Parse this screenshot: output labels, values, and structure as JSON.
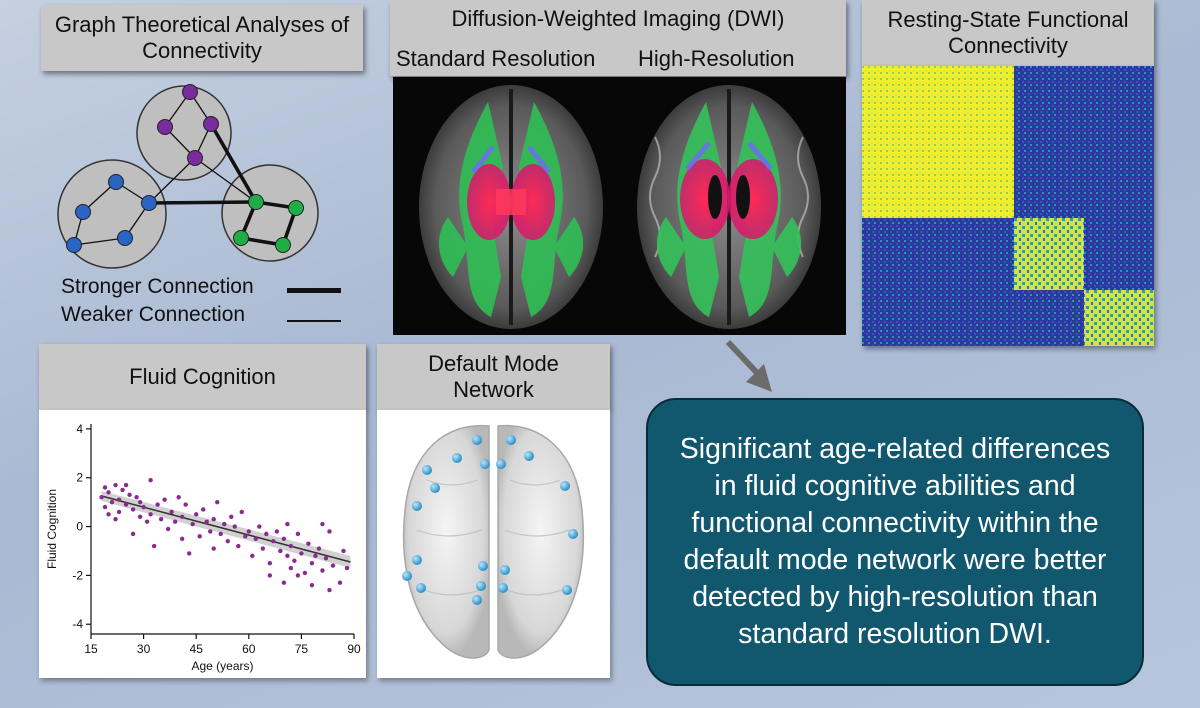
{
  "graph_panel": {
    "title": "Graph Theoretical Analyses of Connectivity",
    "legend_strong": "Stronger Connection",
    "legend_weak": "Weaker Connection",
    "colors": {
      "purple": "#7a2b9e",
      "blue": "#2a64c4",
      "green": "#1fae46"
    }
  },
  "dwi_panel": {
    "title": "Diffusion-Weighted Imaging (DWI)",
    "standard_label": "Standard Resolution",
    "high_label": "High-Resolution"
  },
  "rsfc_panel": {
    "title": "Resting-State Functional Connectivity"
  },
  "fluid_panel": {
    "title": "Fluid Cognition"
  },
  "dmn_panel": {
    "title": "Default Mode Network"
  },
  "callout": {
    "text": "Significant age-related differences in fluid cognitive abilities and functional connectivity within the default mode network were better detected by high-resolution than standard resolution DWI."
  },
  "chart_data": {
    "type": "scatter",
    "title": "",
    "xlabel": "Age (years)",
    "ylabel": "Fluid Cognition",
    "xlim": [
      15,
      90
    ],
    "ylim": [
      -4.4,
      4.2
    ],
    "xticks": [
      15,
      30,
      45,
      60,
      75,
      90
    ],
    "yticks": [
      -4,
      -2,
      0,
      2,
      4
    ],
    "point_color": "#8b2a8f",
    "trend": {
      "x": [
        18,
        89
      ],
      "y": [
        1.25,
        -1.45
      ]
    },
    "points": [
      [
        18,
        1.2
      ],
      [
        19,
        1.6
      ],
      [
        19,
        0.8
      ],
      [
        20,
        1.4
      ],
      [
        20,
        0.5
      ],
      [
        21,
        1.0
      ],
      [
        22,
        1.7
      ],
      [
        22,
        0.3
      ],
      [
        23,
        1.1
      ],
      [
        23,
        0.6
      ],
      [
        24,
        1.5
      ],
      [
        25,
        1.7
      ],
      [
        25,
        0.9
      ],
      [
        26,
        1.3
      ],
      [
        27,
        -0.3
      ],
      [
        27,
        0.7
      ],
      [
        28,
        1.2
      ],
      [
        29,
        0.4
      ],
      [
        29,
        1.0
      ],
      [
        30,
        0.8
      ],
      [
        31,
        0.2
      ],
      [
        32,
        1.9
      ],
      [
        32,
        0.5
      ],
      [
        33,
        -0.8
      ],
      [
        34,
        0.9
      ],
      [
        35,
        0.3
      ],
      [
        36,
        1.1
      ],
      [
        37,
        -0.1
      ],
      [
        38,
        0.6
      ],
      [
        39,
        0.2
      ],
      [
        40,
        1.2
      ],
      [
        41,
        -0.5
      ],
      [
        41,
        0.4
      ],
      [
        42,
        0.9
      ],
      [
        43,
        -1.1
      ],
      [
        44,
        0.1
      ],
      [
        45,
        0.5
      ],
      [
        46,
        -0.4
      ],
      [
        47,
        0.7
      ],
      [
        48,
        0.2
      ],
      [
        49,
        -0.2
      ],
      [
        50,
        0.3
      ],
      [
        50,
        -0.9
      ],
      [
        51,
        1.0
      ],
      [
        52,
        -0.3
      ],
      [
        53,
        0.1
      ],
      [
        54,
        -0.6
      ],
      [
        55,
        0.4
      ],
      [
        56,
        0.0
      ],
      [
        57,
        -0.8
      ],
      [
        58,
        0.6
      ],
      [
        59,
        -0.4
      ],
      [
        60,
        -0.2
      ],
      [
        61,
        -1.2
      ],
      [
        62,
        -0.5
      ],
      [
        63,
        0.0
      ],
      [
        64,
        -0.9
      ],
      [
        65,
        -0.3
      ],
      [
        66,
        -1.5
      ],
      [
        66,
        -2.0
      ],
      [
        67,
        -0.6
      ],
      [
        68,
        -0.2
      ],
      [
        69,
        -1.0
      ],
      [
        70,
        -0.5
      ],
      [
        70,
        -2.3
      ],
      [
        71,
        0.1
      ],
      [
        71,
        -1.2
      ],
      [
        72,
        -0.8
      ],
      [
        72,
        -1.7
      ],
      [
        73,
        -1.4
      ],
      [
        74,
        -0.3
      ],
      [
        74,
        -2.0
      ],
      [
        75,
        -1.1
      ],
      [
        76,
        -1.9
      ],
      [
        77,
        -0.7
      ],
      [
        78,
        -1.5
      ],
      [
        78,
        -2.4
      ],
      [
        79,
        -1.2
      ],
      [
        80,
        -0.9
      ],
      [
        81,
        0.1
      ],
      [
        81,
        -1.8
      ],
      [
        82,
        -1.3
      ],
      [
        83,
        -0.2
      ],
      [
        83,
        -2.6
      ],
      [
        84,
        -1.6
      ],
      [
        86,
        -2.3
      ],
      [
        87,
        -1.0
      ],
      [
        88,
        -1.7
      ]
    ]
  }
}
